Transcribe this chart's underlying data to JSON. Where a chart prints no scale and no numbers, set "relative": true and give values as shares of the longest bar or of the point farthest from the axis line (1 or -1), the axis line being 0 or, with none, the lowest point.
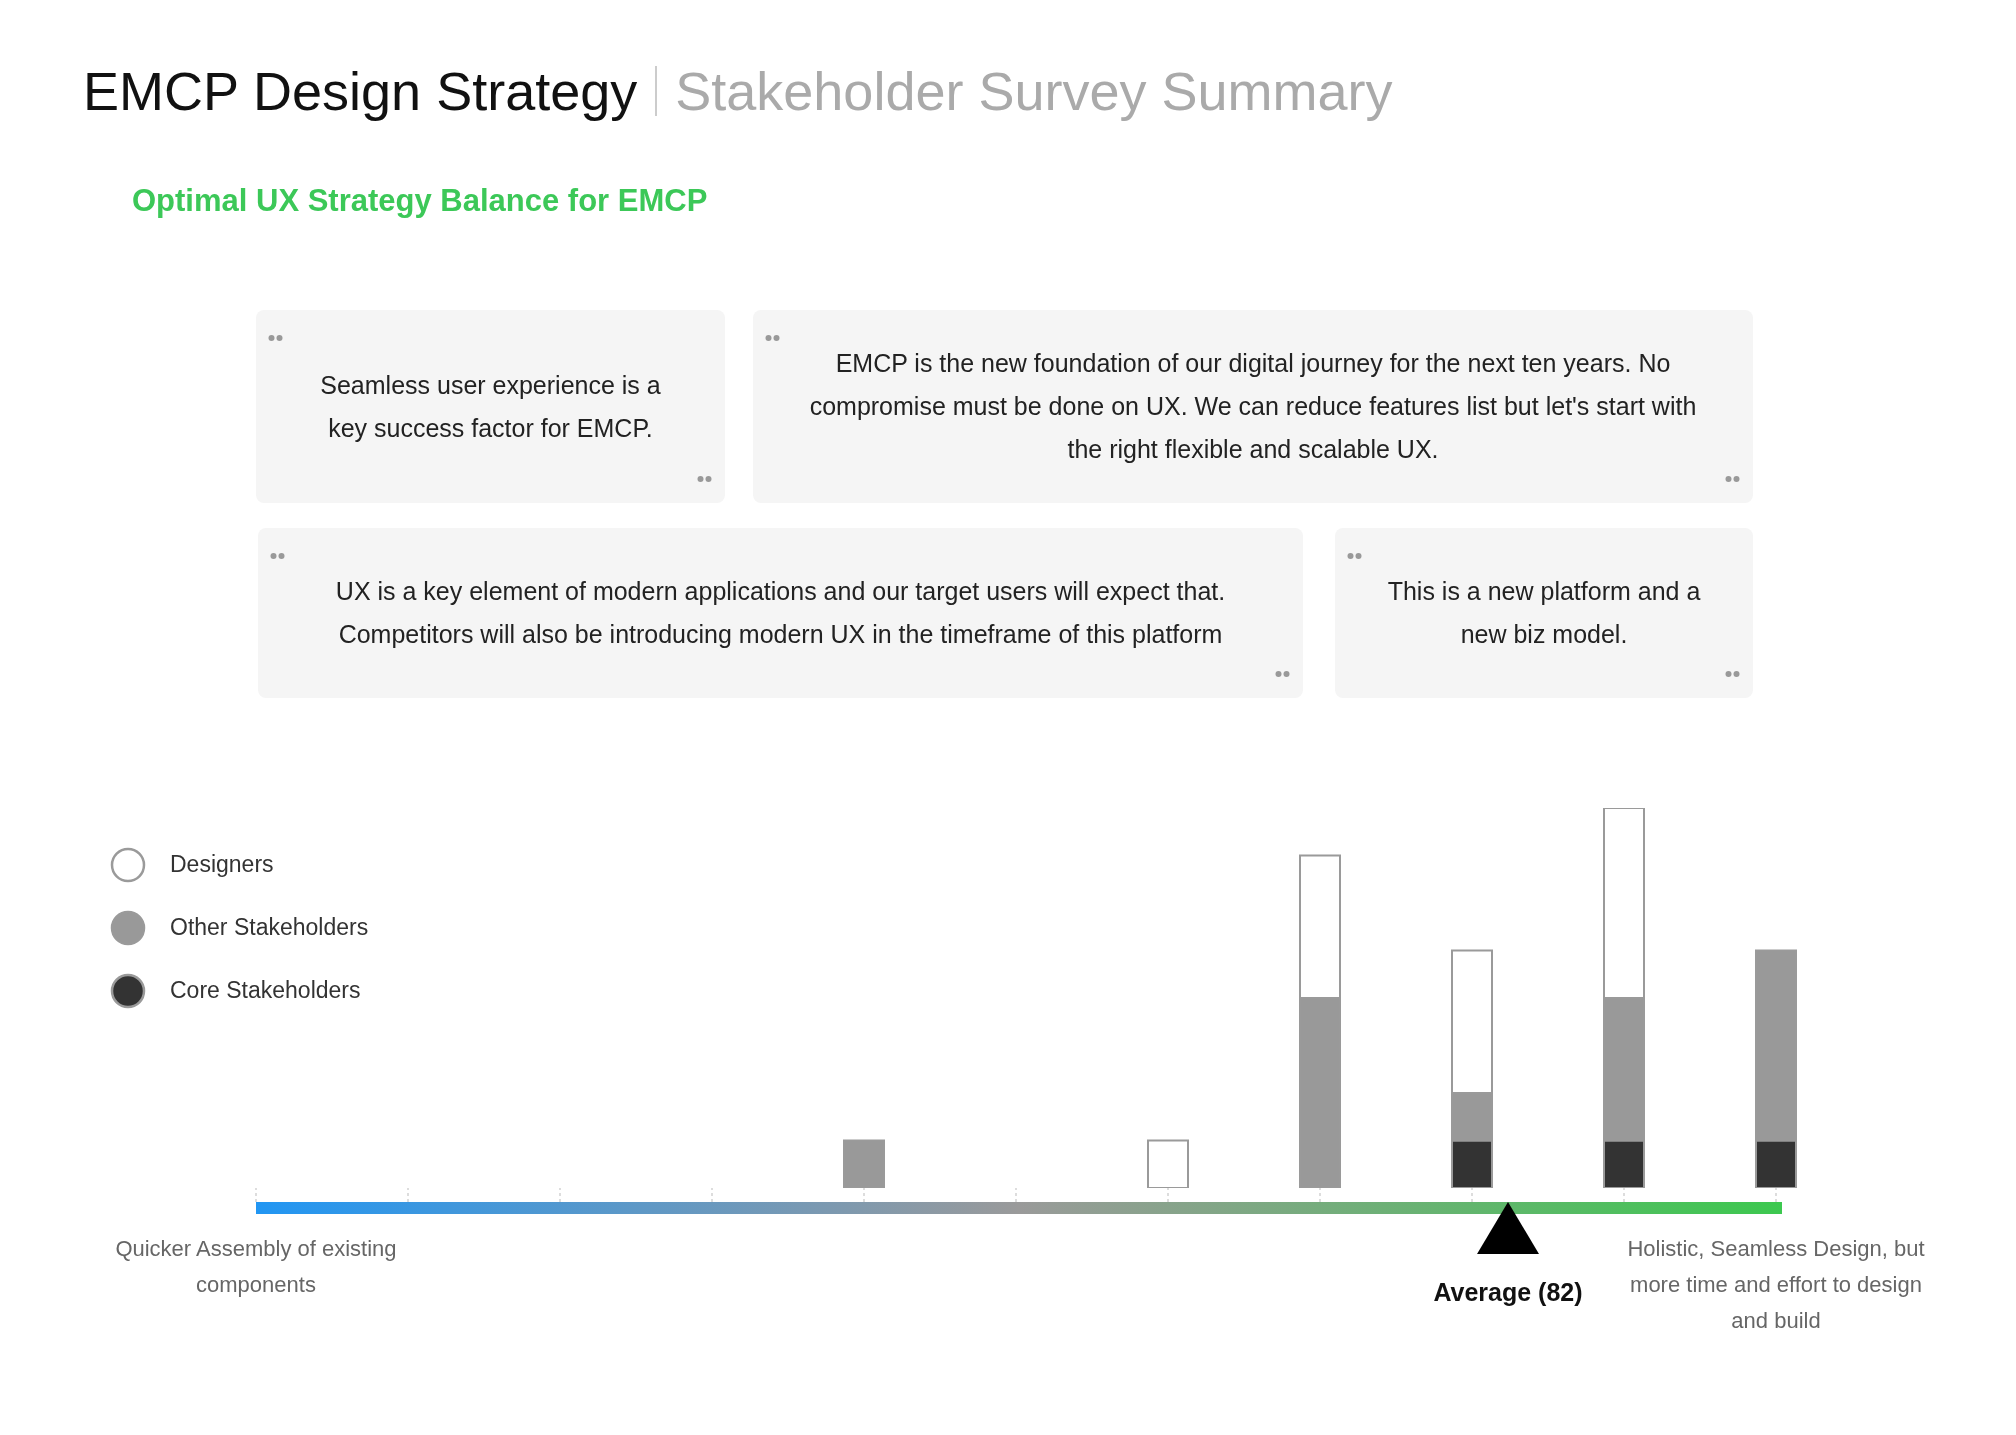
{
  "chart_data": {
    "type": "bar",
    "stacked": true,
    "relative": true,
    "title": "EMCP Design Strategy",
    "subtitle": "Stakeholder Survey Summary",
    "annotations": [
      "Optimal UX Strategy Balance for EMCP",
      "Seamless user experience is a key success factor for EMCP.",
      "EMCP is the new foundation of our digital journey for the next ten years. No compromise must be done on UX. We can reduce features list but let's start with the right flexible and scalable UX.",
      "UX is a key element of modern applications and our target users will expect that. Competitors will also be introducing modern UX in the timeframe of this platform",
      "This is a new platform and a new biz model.",
      "Average (82)"
    ],
    "categories": [
      "Quicker Assembly of existing components",
      null,
      null,
      null,
      null,
      null,
      null,
      null,
      null,
      null,
      "Holistic, Seamless Design, but more time and effort to design and build"
    ],
    "series": [
      {
        "name": "Core Stakeholders",
        "color": "#333333",
        "values": [
          0,
          0,
          0,
          0,
          0,
          0,
          0,
          0,
          0.125,
          0.125,
          0.125
        ]
      },
      {
        "name": "Other Stakeholders",
        "color": "#999999",
        "values": [
          0,
          0,
          0,
          0,
          0.125,
          0,
          0,
          0.5,
          0.125,
          0.375,
          0.5
        ]
      },
      {
        "name": "Designers",
        "color": "#ffffff",
        "values": [
          0,
          0,
          0,
          0,
          0,
          0,
          0.125,
          0.375,
          0.375,
          0.5,
          0
        ]
      }
    ],
    "legend": "left"
  }
}
